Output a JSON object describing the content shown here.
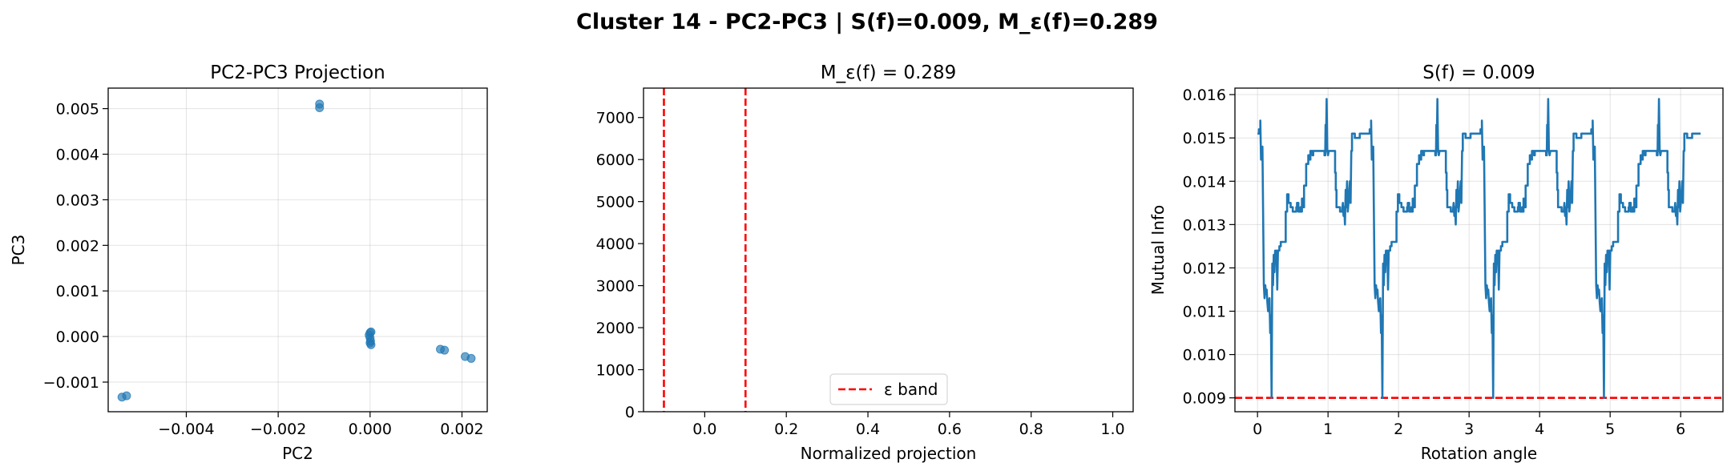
{
  "figure": {
    "title": "Cluster 14 - PC2-PC3 | S(f)=0.009, M_ε(f)=0.289"
  },
  "chart_data": [
    {
      "type": "scatter",
      "title": "PC2-PC3 Projection",
      "xlabel": "PC2",
      "ylabel": "PC3",
      "xlim": [
        -0.0057,
        0.00255
      ],
      "ylim": [
        -0.00165,
        0.00545
      ],
      "xticks": [
        -0.004,
        -0.002,
        0.0,
        0.002
      ],
      "xtick_labels": [
        "−0.004",
        "−0.002",
        "0.000",
        "0.002"
      ],
      "yticks": [
        -0.001,
        0.0,
        0.001,
        0.002,
        0.003,
        0.004,
        0.005
      ],
      "ytick_labels": [
        "−0.001",
        "0.000",
        "0.001",
        "0.002",
        "0.003",
        "0.004",
        "0.005"
      ],
      "grid": true,
      "color": "#1f77b4",
      "points": [
        {
          "x": -0.0054,
          "y": -0.00133
        },
        {
          "x": -0.0053,
          "y": -0.0013
        },
        {
          "x": -0.0011,
          "y": 0.0051
        },
        {
          "x": -0.0011,
          "y": 0.00502
        },
        {
          "x": 0.0,
          "y": 8e-05
        },
        {
          "x": 2e-05,
          "y": 0.0001
        },
        {
          "x": -2e-05,
          "y": 3e-05
        },
        {
          "x": 0.0,
          "y": -3e-05
        },
        {
          "x": 1e-05,
          "y": -0.0001
        },
        {
          "x": 0.0,
          "y": -0.00014
        },
        {
          "x": 2e-05,
          "y": -0.00018
        },
        {
          "x": 0.00153,
          "y": -0.00028
        },
        {
          "x": 0.00162,
          "y": -0.0003
        },
        {
          "x": 0.00207,
          "y": -0.00044
        },
        {
          "x": 0.0022,
          "y": -0.00048
        }
      ]
    },
    {
      "type": "line",
      "title": "M_ε(f) = 0.289",
      "xlabel": "Normalized projection",
      "ylabel": "",
      "xlim": [
        -0.15,
        1.05
      ],
      "ylim": [
        0,
        7700
      ],
      "xticks": [
        0.0,
        0.2,
        0.4,
        0.6,
        0.8,
        1.0
      ],
      "xtick_labels": [
        "0.0",
        "0.2",
        "0.4",
        "0.6",
        "0.8",
        "1.0"
      ],
      "yticks": [
        0,
        1000,
        2000,
        3000,
        4000,
        5000,
        6000,
        7000
      ],
      "ytick_labels": [
        "0",
        "1000",
        "2000",
        "3000",
        "4000",
        "5000",
        "6000",
        "7000"
      ],
      "grid": false,
      "vlines": [
        -0.1,
        0.1
      ],
      "vline_color": "#ff0000",
      "legend": {
        "label": "ε band",
        "placement": "lower center"
      }
    },
    {
      "type": "line",
      "title": "S(f) = 0.009",
      "xlabel": "Rotation angle",
      "ylabel": "Mutual Info",
      "xlim": [
        -0.32,
        6.6
      ],
      "ylim": [
        0.00868,
        0.01615
      ],
      "xticks": [
        0,
        1,
        2,
        3,
        4,
        5,
        6
      ],
      "xtick_labels": [
        "0",
        "1",
        "2",
        "3",
        "4",
        "5",
        "6"
      ],
      "yticks": [
        0.009,
        0.01,
        0.011,
        0.012,
        0.013,
        0.014,
        0.015,
        0.016
      ],
      "ytick_labels": [
        "0.009",
        "0.010",
        "0.011",
        "0.012",
        "0.013",
        "0.014",
        "0.015",
        "0.016"
      ],
      "grid": true,
      "color": "#1f77b4",
      "hline": 0.009,
      "hline_color": "#ff0000",
      "period": 1.5708,
      "segment": [
        [
          0.0,
          0.0151
        ],
        [
          0.02,
          0.0151
        ],
        [
          0.02,
          0.0152
        ],
        [
          0.04,
          0.0152
        ],
        [
          0.04,
          0.0154
        ],
        [
          0.05,
          0.0145
        ],
        [
          0.07,
          0.0148
        ],
        [
          0.08,
          0.0132
        ],
        [
          0.09,
          0.0116
        ],
        [
          0.1,
          0.0113
        ],
        [
          0.11,
          0.0116
        ],
        [
          0.12,
          0.0114
        ],
        [
          0.13,
          0.0115
        ],
        [
          0.14,
          0.0112
        ],
        [
          0.15,
          0.011
        ],
        [
          0.16,
          0.0112
        ],
        [
          0.17,
          0.0113
        ],
        [
          0.18,
          0.0105
        ],
        [
          0.19,
          0.0109
        ],
        [
          0.195,
          0.0099
        ],
        [
          0.2,
          0.009
        ],
        [
          0.21,
          0.0121
        ],
        [
          0.22,
          0.0116
        ],
        [
          0.23,
          0.0123
        ],
        [
          0.24,
          0.0119
        ],
        [
          0.25,
          0.0124
        ],
        [
          0.26,
          0.0122
        ],
        [
          0.27,
          0.0124
        ],
        [
          0.28,
          0.0115
        ],
        [
          0.29,
          0.0124
        ],
        [
          0.31,
          0.0124
        ],
        [
          0.31,
          0.0125
        ],
        [
          0.33,
          0.0125
        ],
        [
          0.33,
          0.0126
        ],
        [
          0.4,
          0.0126
        ],
        [
          0.4,
          0.0133
        ],
        [
          0.42,
          0.0133
        ],
        [
          0.42,
          0.0137
        ],
        [
          0.44,
          0.0137
        ],
        [
          0.44,
          0.0135
        ],
        [
          0.47,
          0.0135
        ],
        [
          0.47,
          0.0134
        ],
        [
          0.5,
          0.0134
        ],
        [
          0.5,
          0.0133
        ],
        [
          0.55,
          0.0133
        ],
        [
          0.55,
          0.0134
        ],
        [
          0.56,
          0.0134
        ],
        [
          0.56,
          0.0135
        ],
        [
          0.58,
          0.0135
        ],
        [
          0.58,
          0.0133
        ],
        [
          0.61,
          0.0133
        ],
        [
          0.61,
          0.0134
        ],
        [
          0.62,
          0.0134
        ],
        [
          0.62,
          0.0133
        ],
        [
          0.63,
          0.0133
        ],
        [
          0.63,
          0.0136
        ],
        [
          0.65,
          0.0136
        ],
        [
          0.65,
          0.0134
        ],
        [
          0.66,
          0.0134
        ],
        [
          0.66,
          0.0139
        ],
        [
          0.69,
          0.0139
        ],
        [
          0.69,
          0.0144
        ],
        [
          0.72,
          0.0144
        ],
        [
          0.72,
          0.0146
        ],
        [
          0.74,
          0.0146
        ],
        [
          0.74,
          0.0145
        ],
        [
          0.75,
          0.0145
        ],
        [
          0.75,
          0.0147
        ],
        [
          0.78,
          0.0147
        ],
        [
          0.78,
          0.0146
        ],
        [
          0.79,
          0.0146
        ],
        [
          0.79,
          0.0147
        ],
        [
          0.95,
          0.0147
        ],
        [
          0.95,
          0.0146
        ],
        [
          0.96,
          0.0146
        ],
        [
          0.965,
          0.0153
        ],
        [
          0.97,
          0.0147
        ],
        [
          0.98,
          0.0159
        ],
        [
          0.99,
          0.0147
        ],
        [
          1.0,
          0.0146
        ],
        [
          1.01,
          0.0147
        ],
        [
          1.1,
          0.0147
        ],
        [
          1.1,
          0.0142
        ],
        [
          1.11,
          0.0142
        ],
        [
          1.11,
          0.0138
        ],
        [
          1.12,
          0.0138
        ],
        [
          1.12,
          0.0134
        ],
        [
          1.17,
          0.0134
        ],
        [
          1.17,
          0.0133
        ],
        [
          1.2,
          0.0133
        ],
        [
          1.21,
          0.0135
        ],
        [
          1.22,
          0.0132
        ],
        [
          1.23,
          0.0134
        ],
        [
          1.24,
          0.013
        ],
        [
          1.25,
          0.0138
        ],
        [
          1.26,
          0.0134
        ],
        [
          1.27,
          0.014
        ],
        [
          1.28,
          0.0133
        ],
        [
          1.3,
          0.0137
        ],
        [
          1.31,
          0.014
        ],
        [
          1.32,
          0.0135
        ],
        [
          1.33,
          0.0147
        ],
        [
          1.34,
          0.0147
        ],
        [
          1.34,
          0.0151
        ],
        [
          1.38,
          0.0151
        ],
        [
          1.38,
          0.015
        ],
        [
          1.45,
          0.015
        ],
        [
          1.45,
          0.0151
        ],
        [
          1.5708,
          0.0151
        ]
      ]
    }
  ]
}
